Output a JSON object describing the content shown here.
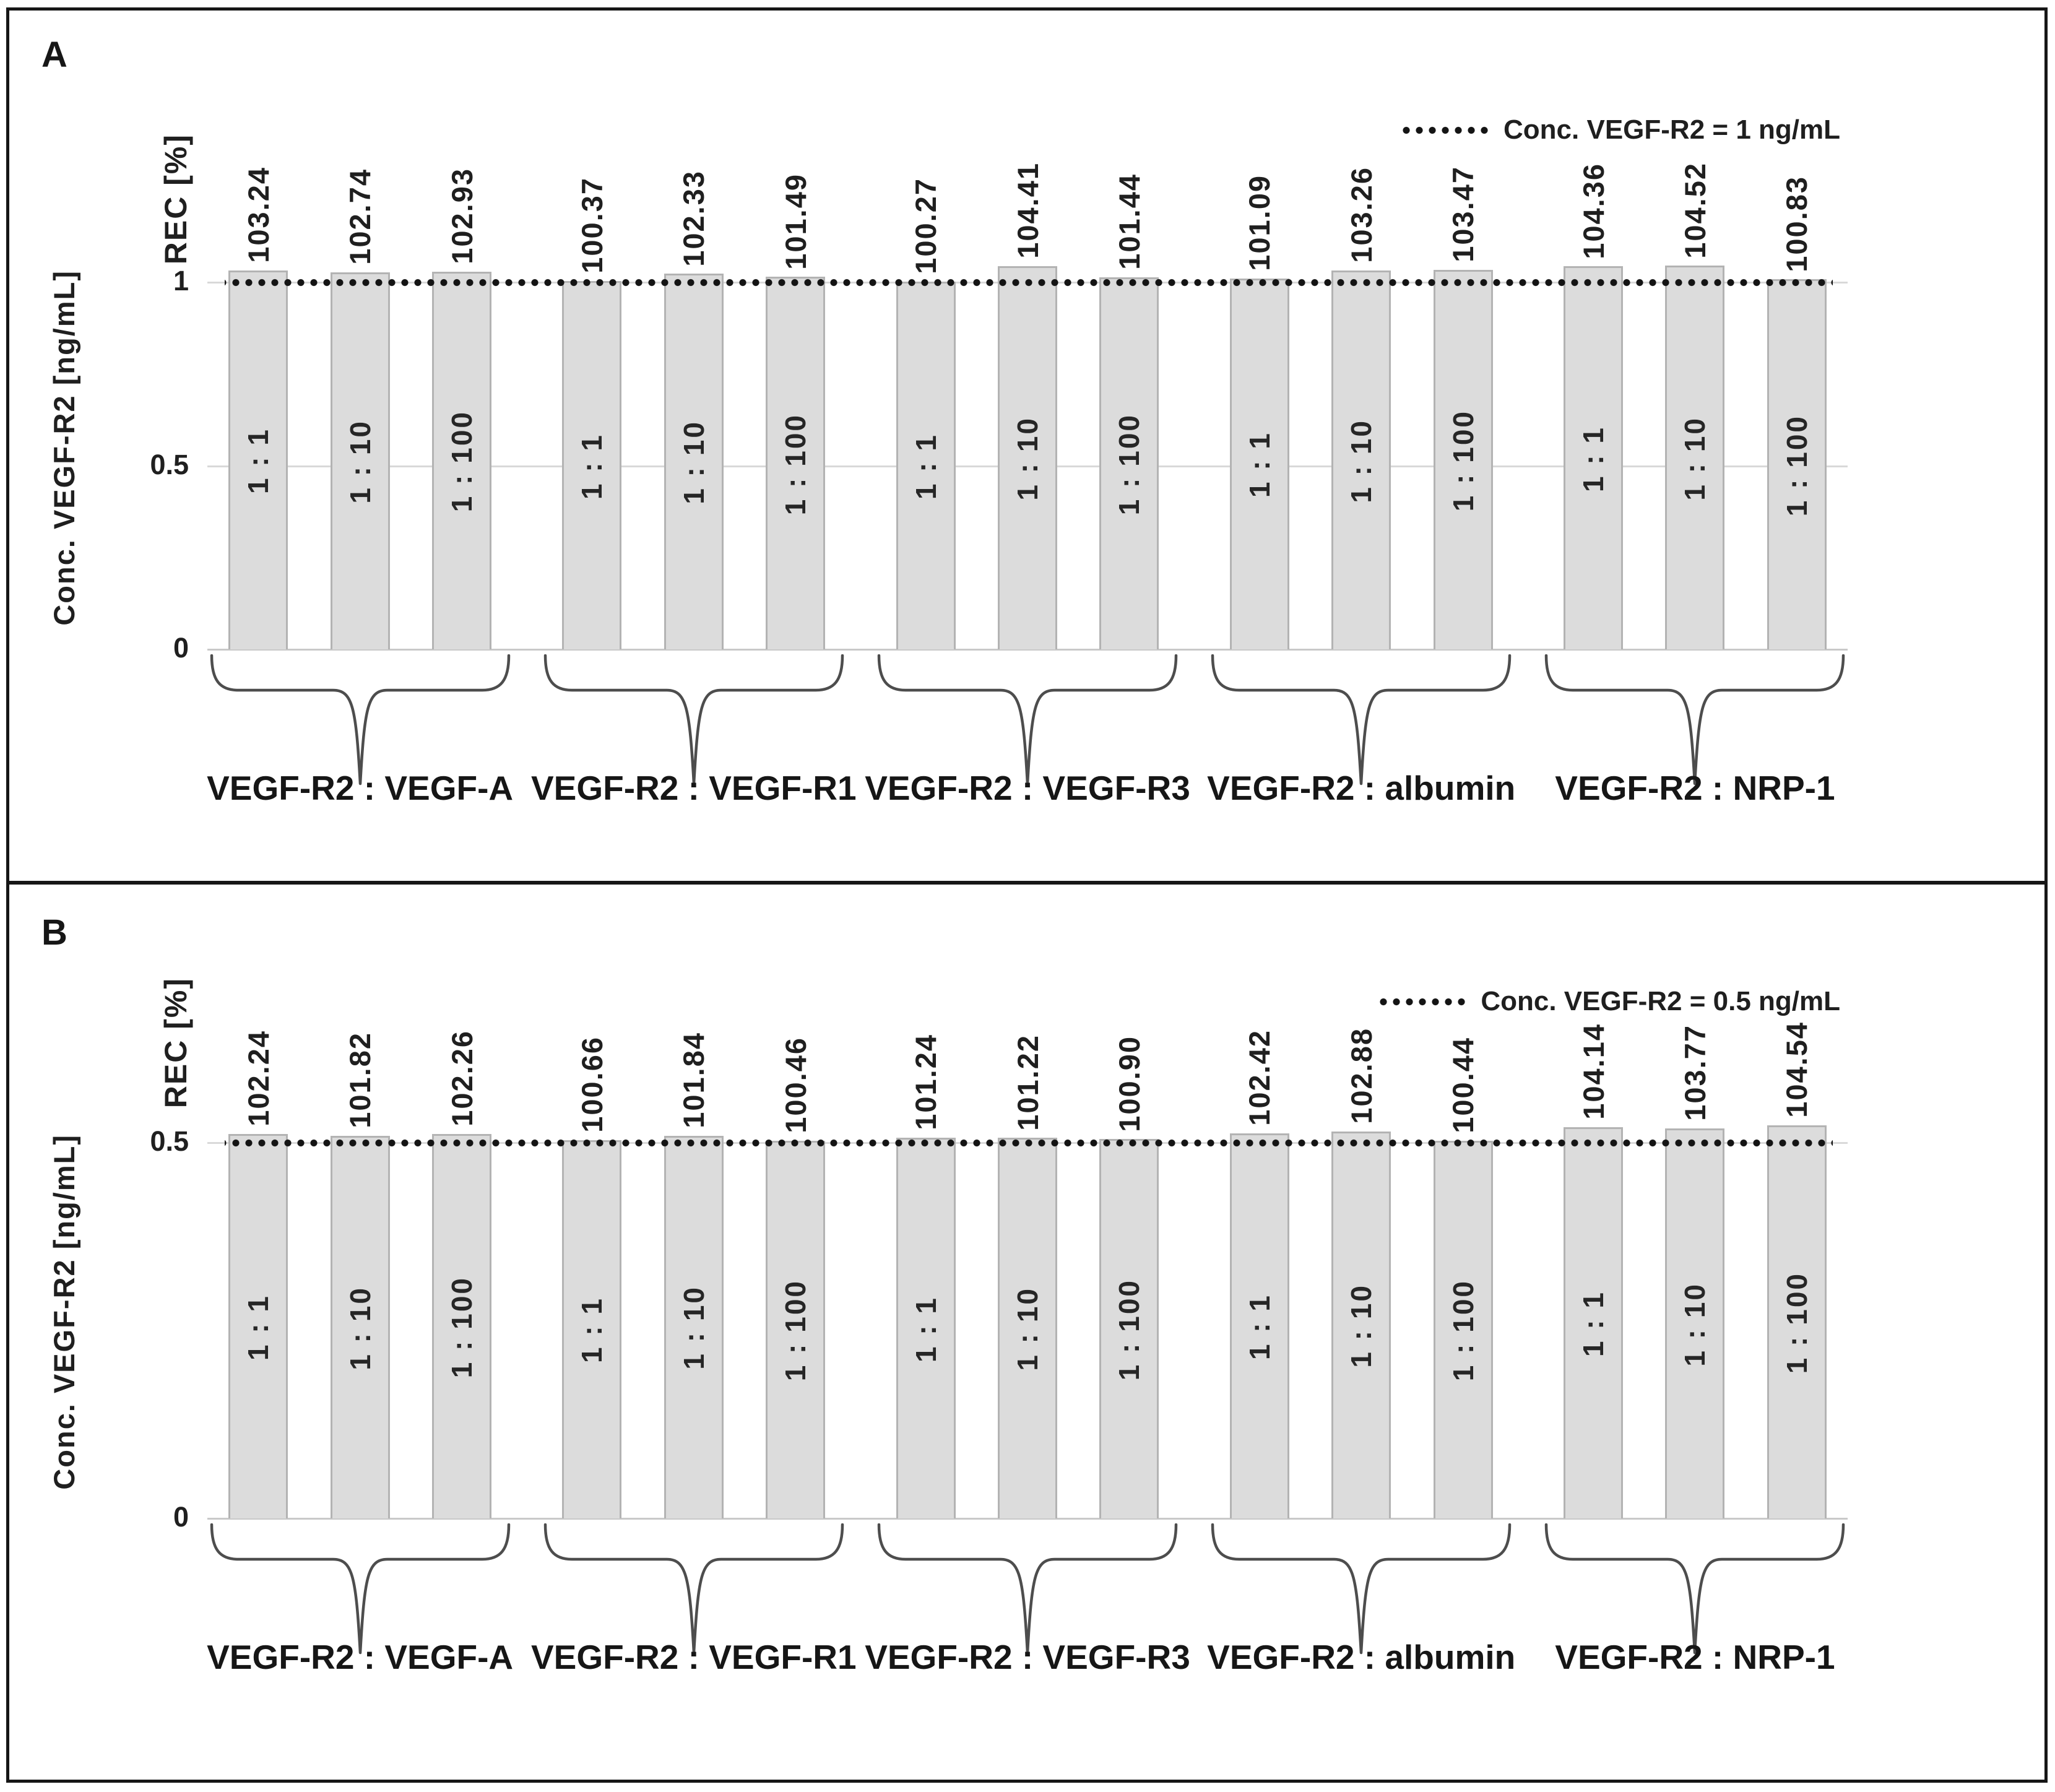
{
  "colors": {
    "bar_fill": "#dcdcdc",
    "bar_border": "#b3b3b3",
    "gridline": "#d9d9d9",
    "reference_dots": "#141414",
    "text": "#1f1f1f",
    "brace": "#4d4d4d",
    "frame": "#161616"
  },
  "chart_data": [
    {
      "type": "bar",
      "panel_label": "A",
      "legend_label": "Conc. VEGF-R2 = 1 ng/mL",
      "ylabel": "Conc. VEGF-R2 [ng/mL]",
      "value_header": "REC [%]",
      "ylim": [
        0,
        1.1
      ],
      "grid": true,
      "legend_position": "top-right",
      "reference_line": {
        "value": 1,
        "style": "dotted"
      },
      "yticks": [
        {
          "value": 1,
          "label": "1"
        },
        {
          "value": 0.5,
          "label": "0.5"
        },
        {
          "value": 0,
          "label": "0"
        }
      ],
      "categories": [
        "VEGF-R2 : VEGF-A",
        "VEGF-R2 : VEGF-R1",
        "VEGF-R2 : VEGF-R3",
        "VEGF-R2 : albumin",
        "VEGF-R2 : NRP-1"
      ],
      "dilutions": [
        "1 : 1",
        "1 : 10",
        "1 : 100"
      ],
      "groups": [
        {
          "label": "VEGF-R2 : VEGF-A",
          "bars": [
            {
              "dilution": "1 : 1",
              "rec_percent": 103.24,
              "conc_ng_ml": 1.0324
            },
            {
              "dilution": "1 : 10",
              "rec_percent": 102.74,
              "conc_ng_ml": 1.0274
            },
            {
              "dilution": "1 : 100",
              "rec_percent": 102.93,
              "conc_ng_ml": 1.0293
            }
          ]
        },
        {
          "label": "VEGF-R2 : VEGF-R1",
          "bars": [
            {
              "dilution": "1 : 1",
              "rec_percent": 100.37,
              "conc_ng_ml": 1.0037
            },
            {
              "dilution": "1 : 10",
              "rec_percent": 102.33,
              "conc_ng_ml": 1.0233
            },
            {
              "dilution": "1 : 100",
              "rec_percent": 101.49,
              "conc_ng_ml": 1.0149
            }
          ]
        },
        {
          "label": "VEGF-R2 : VEGF-R3",
          "bars": [
            {
              "dilution": "1 : 1",
              "rec_percent": 100.27,
              "conc_ng_ml": 1.0027
            },
            {
              "dilution": "1 : 10",
              "rec_percent": 104.41,
              "conc_ng_ml": 1.0441
            },
            {
              "dilution": "1 : 100",
              "rec_percent": 101.44,
              "conc_ng_ml": 1.0144
            }
          ]
        },
        {
          "label": "VEGF-R2 : albumin",
          "bars": [
            {
              "dilution": "1 : 1",
              "rec_percent": 101.09,
              "conc_ng_ml": 1.0109
            },
            {
              "dilution": "1 : 10",
              "rec_percent": 103.26,
              "conc_ng_ml": 1.0326
            },
            {
              "dilution": "1 : 100",
              "rec_percent": 103.47,
              "conc_ng_ml": 1.0347
            }
          ]
        },
        {
          "label": "VEGF-R2 : NRP-1",
          "bars": [
            {
              "dilution": "1 : 1",
              "rec_percent": 104.36,
              "conc_ng_ml": 1.0436
            },
            {
              "dilution": "1 : 10",
              "rec_percent": 104.52,
              "conc_ng_ml": 1.0452
            },
            {
              "dilution": "1 : 100",
              "rec_percent": 100.83,
              "conc_ng_ml": 1.0083
            }
          ]
        }
      ]
    },
    {
      "type": "bar",
      "panel_label": "B",
      "legend_label": "Conc. VEGF-R2 = 0.5 ng/mL",
      "ylabel": "Conc. VEGF-R2 [ng/mL]",
      "value_header": "REC [%]",
      "ylim": [
        0,
        0.55
      ],
      "grid": true,
      "legend_position": "top-right",
      "reference_line": {
        "value": 0.5,
        "style": "dotted"
      },
      "yticks": [
        {
          "value": 0.5,
          "label": "0.5"
        },
        {
          "value": 0,
          "label": "0"
        }
      ],
      "categories": [
        "VEGF-R2 : VEGF-A",
        "VEGF-R2 : VEGF-R1",
        "VEGF-R2 : VEGF-R3",
        "VEGF-R2 : albumin",
        "VEGF-R2 : NRP-1"
      ],
      "dilutions": [
        "1 : 1",
        "1 : 10",
        "1 : 100"
      ],
      "groups": [
        {
          "label": "VEGF-R2 : VEGF-A",
          "bars": [
            {
              "dilution": "1 : 1",
              "rec_percent": 102.24,
              "conc_ng_ml": 0.5112
            },
            {
              "dilution": "1 : 10",
              "rec_percent": 101.82,
              "conc_ng_ml": 0.5091
            },
            {
              "dilution": "1 : 100",
              "rec_percent": 102.26,
              "conc_ng_ml": 0.5113
            }
          ]
        },
        {
          "label": "VEGF-R2 : VEGF-R1",
          "bars": [
            {
              "dilution": "1 : 1",
              "rec_percent": 100.66,
              "conc_ng_ml": 0.5033
            },
            {
              "dilution": "1 : 10",
              "rec_percent": 101.84,
              "conc_ng_ml": 0.5092
            },
            {
              "dilution": "1 : 100",
              "rec_percent": 100.46,
              "conc_ng_ml": 0.5023
            }
          ]
        },
        {
          "label": "VEGF-R2 : VEGF-R3",
          "bars": [
            {
              "dilution": "1 : 1",
              "rec_percent": 101.24,
              "conc_ng_ml": 0.5062
            },
            {
              "dilution": "1 : 10",
              "rec_percent": 101.22,
              "conc_ng_ml": 0.5061
            },
            {
              "dilution": "1 : 100",
              "rec_percent": 100.9,
              "conc_ng_ml": 0.5045
            }
          ]
        },
        {
          "label": "VEGF-R2 : albumin",
          "bars": [
            {
              "dilution": "1 : 1",
              "rec_percent": 102.42,
              "conc_ng_ml": 0.5121
            },
            {
              "dilution": "1 : 10",
              "rec_percent": 102.88,
              "conc_ng_ml": 0.5144
            },
            {
              "dilution": "1 : 100",
              "rec_percent": 100.44,
              "conc_ng_ml": 0.5022
            }
          ]
        },
        {
          "label": "VEGF-R2 : NRP-1",
          "bars": [
            {
              "dilution": "1 : 1",
              "rec_percent": 104.14,
              "conc_ng_ml": 0.5207
            },
            {
              "dilution": "1 : 10",
              "rec_percent": 103.77,
              "conc_ng_ml": 0.5189
            },
            {
              "dilution": "1 : 100",
              "rec_percent": 104.54,
              "conc_ng_ml": 0.5227
            }
          ]
        }
      ]
    }
  ]
}
